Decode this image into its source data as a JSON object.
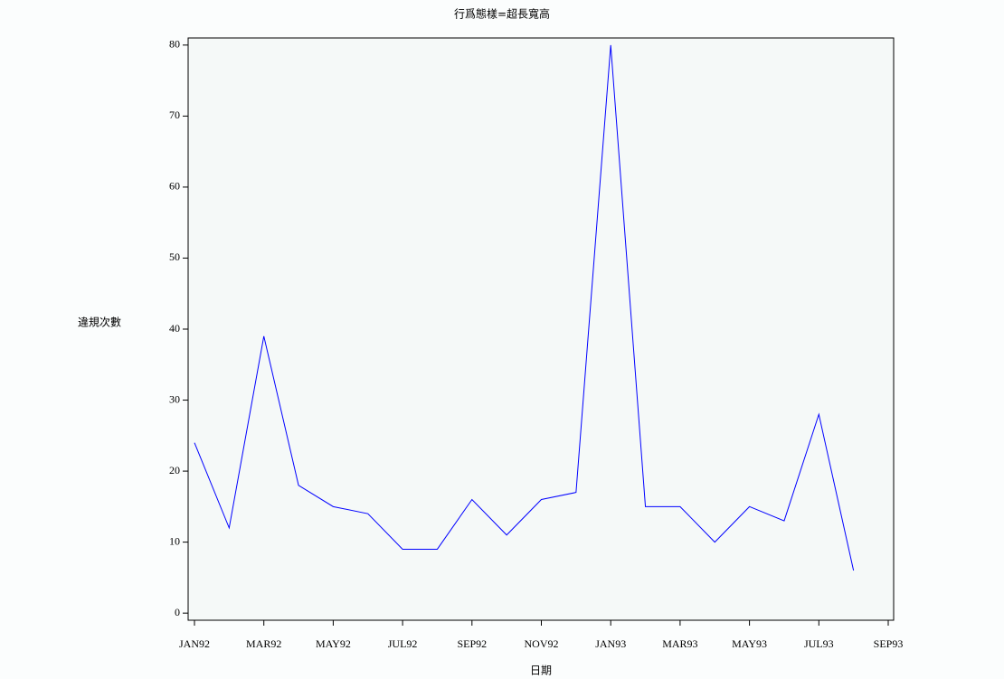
{
  "chart_data": {
    "type": "line",
    "title": "行爲態樣=超長寬高",
    "x_label": "日期",
    "y_label": "違規次數",
    "categories": [
      "JAN92",
      null,
      "MAR92",
      null,
      "MAY92",
      null,
      "JUL92",
      null,
      "SEP92",
      null,
      "NOV92",
      null,
      "JAN93",
      null,
      "MAR93",
      null,
      "MAY93",
      null,
      "JUL93",
      null,
      "SEP93"
    ],
    "values": [
      24,
      12,
      39,
      18,
      15,
      14,
      9,
      9,
      16,
      11,
      16,
      17,
      80,
      15,
      15,
      10,
      15,
      13,
      28,
      6,
      null
    ],
    "color": "#0000ff",
    "ylim": [
      -1,
      81
    ],
    "yticks": [
      0,
      10,
      20,
      30,
      40,
      50,
      60,
      70,
      80
    ]
  }
}
